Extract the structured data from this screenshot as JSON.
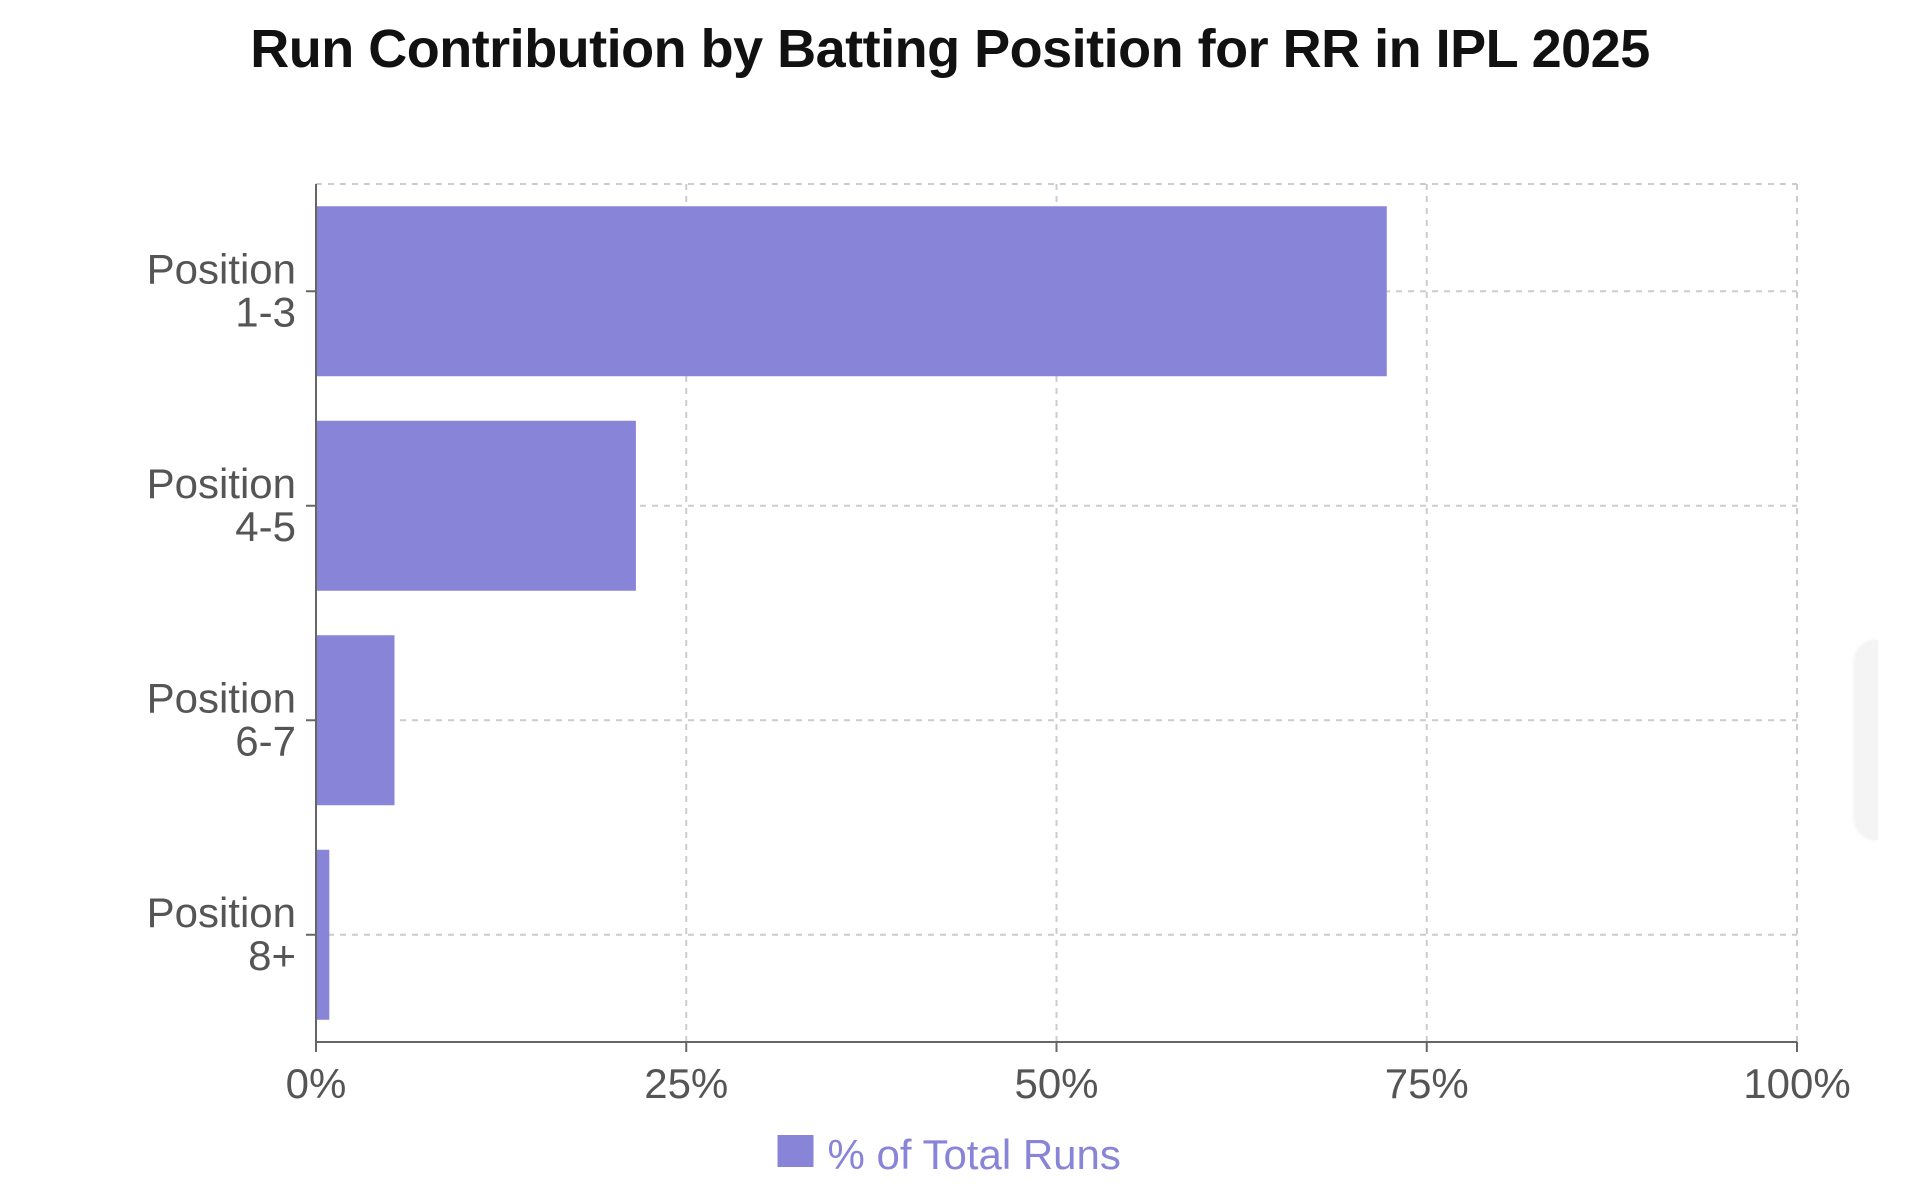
{
  "colors": {
    "bar": "#8884d8",
    "grid": "#cccccc",
    "axis": "#666666",
    "tick_text": "#555555",
    "title": "#111111"
  },
  "chart_data": {
    "type": "bar",
    "orientation": "horizontal",
    "title": "Run Contribution by Batting Position for RR in IPL 2025",
    "categories": [
      [
        "Position",
        "1-3"
      ],
      [
        "Position",
        "4-5"
      ],
      [
        "Position",
        "6-7"
      ],
      [
        "Position",
        "8+"
      ]
    ],
    "series": [
      {
        "name": "% of Total Runs",
        "values": [
          72.3,
          21.6,
          5.3,
          0.9
        ]
      }
    ],
    "xlim": [
      0,
      100
    ],
    "xticks": [
      "0%",
      "25%",
      "50%",
      "75%",
      "100%"
    ],
    "grid": true,
    "legend": "bottom-center"
  }
}
